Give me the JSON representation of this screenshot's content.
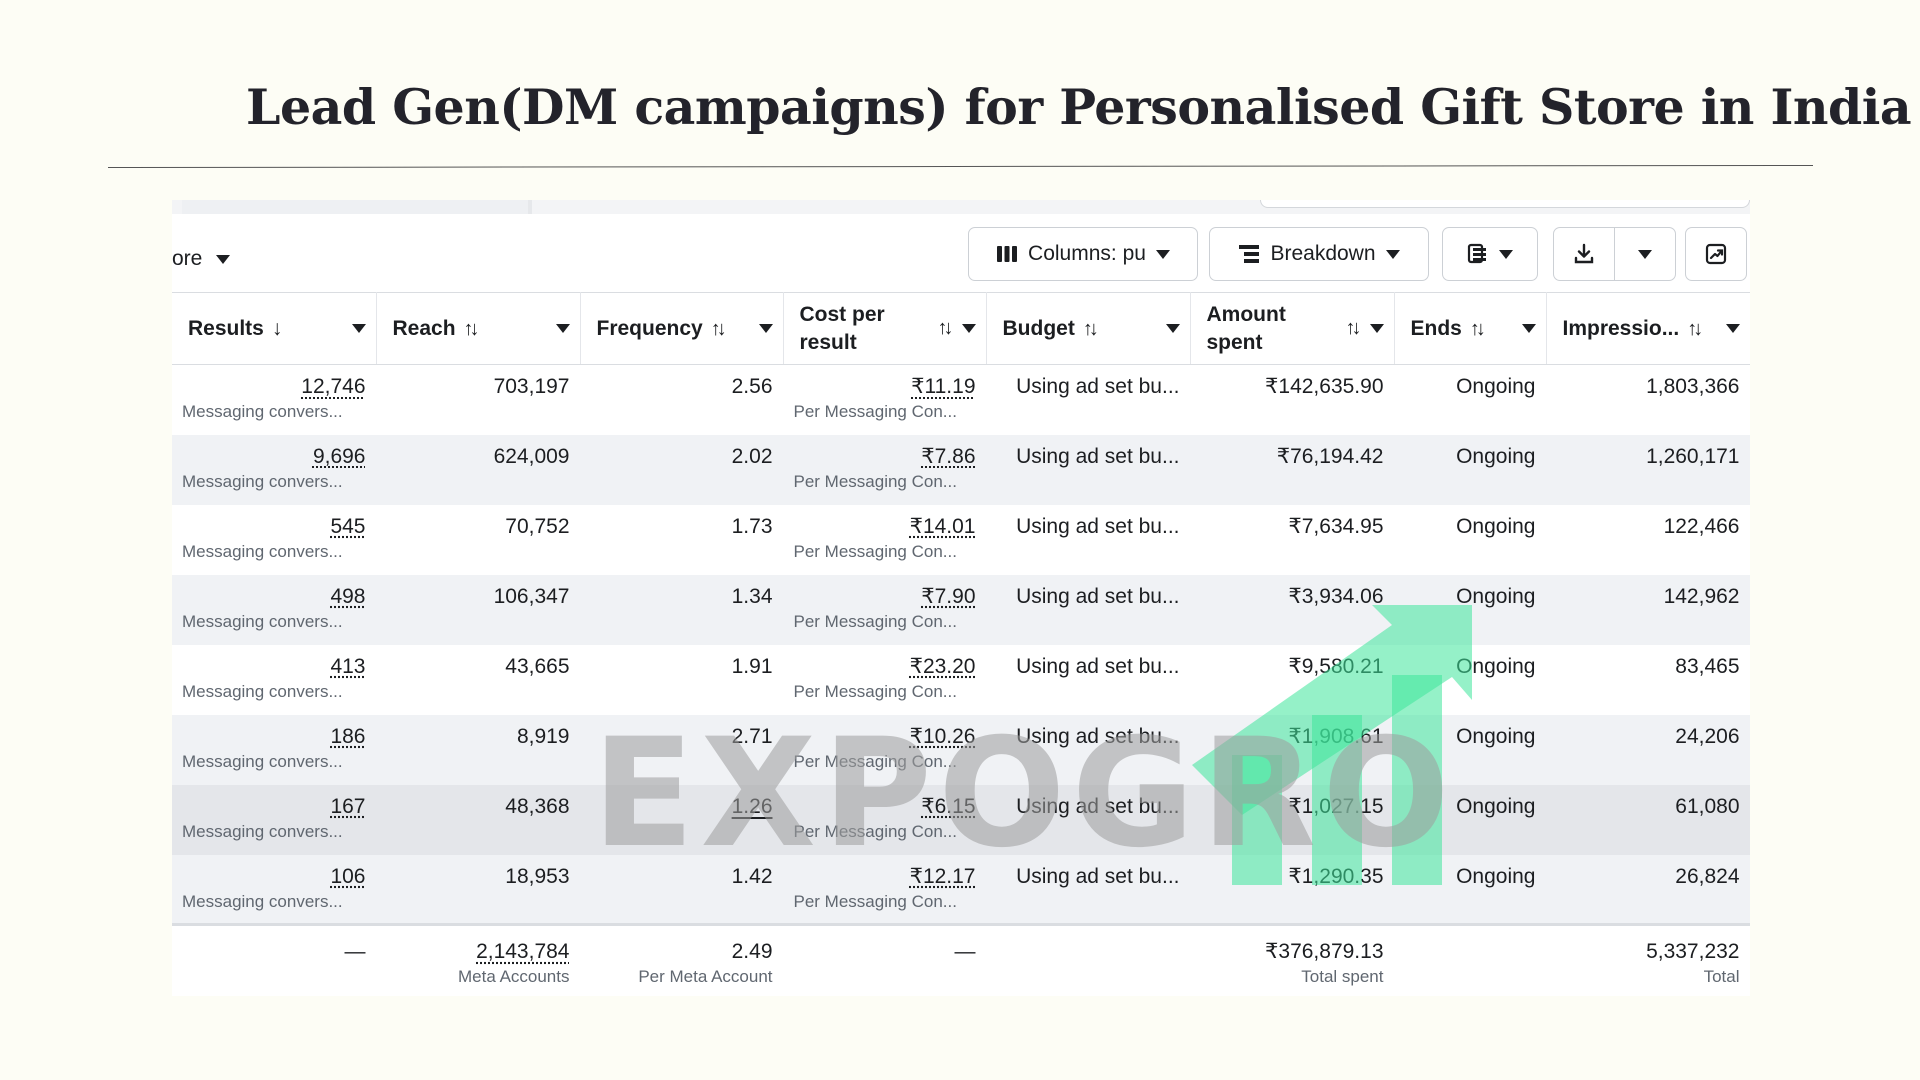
{
  "slide": {
    "title": "Lead Gen(DM campaigns) for Personalised Gift Store in India"
  },
  "toolbar": {
    "left_label": "ore",
    "columns_label": "Columns: pu",
    "breakdown_label": "Breakdown"
  },
  "table": {
    "headers": {
      "results": "Results",
      "reach": "Reach",
      "frequency": "Frequency",
      "cost_line1": "Cost per",
      "cost_line2": "result",
      "budget": "Budget",
      "amount_line1": "Amount",
      "amount_line2": "spent",
      "ends": "Ends",
      "impressions": "Impressio..."
    },
    "rows": [
      {
        "results": "12,746",
        "results_sub": "Messaging convers...",
        "reach": "703,197",
        "frequency": "2.56",
        "cost": "₹11.19",
        "cost_sub": "Per Messaging Con...",
        "budget": "Using ad set bu...",
        "amount": "₹142,635.90",
        "ends": "Ongoing",
        "impressions": "1,803,366"
      },
      {
        "results": "9,696",
        "results_sub": "Messaging convers...",
        "reach": "624,009",
        "frequency": "2.02",
        "cost": "₹7.86",
        "cost_sub": "Per Messaging Con...",
        "budget": "Using ad set bu...",
        "amount": "₹76,194.42",
        "ends": "Ongoing",
        "impressions": "1,260,171"
      },
      {
        "results": "545",
        "results_sub": "Messaging convers...",
        "reach": "70,752",
        "frequency": "1.73",
        "cost": "₹14.01",
        "cost_sub": "Per Messaging Con...",
        "budget": "Using ad set bu...",
        "amount": "₹7,634.95",
        "ends": "Ongoing",
        "impressions": "122,466"
      },
      {
        "results": "498",
        "results_sub": "Messaging convers...",
        "reach": "106,347",
        "frequency": "1.34",
        "cost": "₹7.90",
        "cost_sub": "Per Messaging Con...",
        "budget": "Using ad set bu...",
        "amount": "₹3,934.06",
        "ends": "Ongoing",
        "impressions": "142,962"
      },
      {
        "results": "413",
        "results_sub": "Messaging convers...",
        "reach": "43,665",
        "frequency": "1.91",
        "cost": "₹23.20",
        "cost_sub": "Per Messaging Con...",
        "budget": "Using ad set bu...",
        "amount": "₹9,580.21",
        "ends": "Ongoing",
        "impressions": "83,465"
      },
      {
        "results": "186",
        "results_sub": "Messaging convers...",
        "reach": "8,919",
        "frequency": "2.71",
        "cost": "₹10.26",
        "cost_sub": "Per Messaging Con...",
        "budget": "Using ad set bu...",
        "amount": "₹1,908.61",
        "ends": "Ongoing",
        "impressions": "24,206"
      },
      {
        "results": "167",
        "results_sub": "Messaging convers...",
        "reach": "48,368",
        "frequency": "1.26",
        "cost": "₹6.15",
        "cost_sub": "Per Messaging Con...",
        "budget": "Using ad set bu...",
        "amount": "₹1,027.15",
        "ends": "Ongoing",
        "impressions": "61,080"
      },
      {
        "results": "106",
        "results_sub": "Messaging convers...",
        "reach": "18,953",
        "frequency": "1.42",
        "cost": "₹12.17",
        "cost_sub": "Per Messaging Con...",
        "budget": "Using ad set bu...",
        "amount": "₹1,290.35",
        "ends": "Ongoing",
        "impressions": "26,824"
      }
    ],
    "totals": {
      "results": "—",
      "reach": "2,143,784",
      "reach_sub": "Meta Accounts",
      "frequency": "2.49",
      "frequency_sub": "Per Meta Account",
      "cost": "—",
      "amount": "₹376,879.13",
      "amount_sub": "Total spent",
      "impressions": "5,337,232",
      "impressions_sub": "Total"
    }
  },
  "watermark": {
    "text": "EXPOGRO",
    "text_color": "#9e9e9e",
    "accent_color": "#3ee59a"
  },
  "colors": {
    "accent_blue": "#1866c9",
    "row_alt": "#f0f2f5",
    "row_selected": "#e4e6ea"
  }
}
